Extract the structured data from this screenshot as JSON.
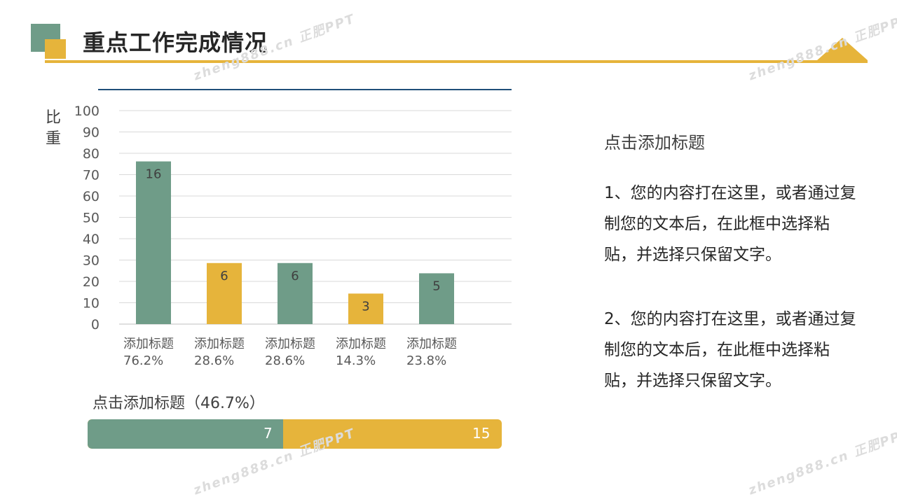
{
  "colors": {
    "green": "#6f9c88",
    "yellow": "#e6b43b"
  },
  "header": {
    "title": "重点工作完成情况"
  },
  "chart_data": {
    "type": "bar",
    "ylabel": "比重",
    "ylim": [
      0,
      100
    ],
    "yticks": [
      0,
      10,
      20,
      30,
      40,
      50,
      60,
      70,
      80,
      90,
      100
    ],
    "categories": [
      "添加标题",
      "添加标题",
      "添加标题",
      "添加标题",
      "添加标题"
    ],
    "percent_labels": [
      "76.2%",
      "28.6%",
      "28.6%",
      "14.3%",
      "23.8%"
    ],
    "values": [
      76.2,
      28.6,
      28.6,
      14.3,
      23.8
    ],
    "data_labels": [
      "16",
      "6",
      "6",
      "3",
      "5"
    ],
    "bar_colors": [
      "#6f9c88",
      "#e6b43b",
      "#6f9c88",
      "#e6b43b",
      "#6f9c88"
    ],
    "grid": true
  },
  "progress": {
    "title": "点击添加标题（46.7%）",
    "fraction": 0.467,
    "value_a": "7",
    "value_b": "15"
  },
  "side": {
    "heading": "点击添加标题",
    "para1": "1、您的内容打在这里，或者通过复制您的文本后，在此框中选择粘贴，并选择只保留文字。",
    "para2": "2、您的内容打在这里，或者通过复制您的文本后，在此框中选择粘贴，并选择只保留文字。"
  },
  "watermark": {
    "text": "zheng888.cn 正肥PPT"
  }
}
